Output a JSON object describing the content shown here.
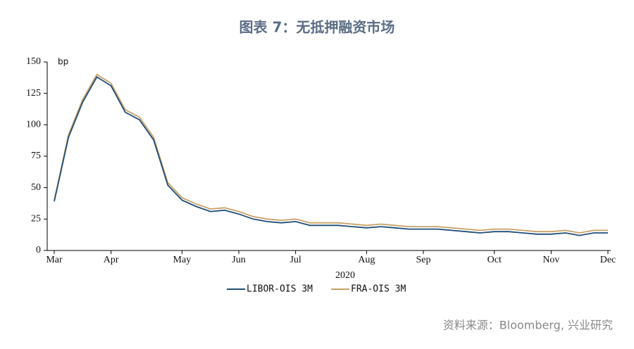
{
  "chart_data": {
    "type": "line",
    "title": "图表 7：无抵押融资市场",
    "y_unit": "bp",
    "x_label": "2020",
    "source": "资料来源：Bloomberg, 兴业研究",
    "categories": [
      "Mar",
      null,
      null,
      null,
      "Apr",
      null,
      null,
      null,
      null,
      "May",
      null,
      null,
      null,
      "Jun",
      null,
      null,
      null,
      "Jul",
      null,
      null,
      null,
      null,
      "Aug",
      null,
      null,
      null,
      "Sep",
      null,
      null,
      null,
      null,
      "Oct",
      null,
      null,
      null,
      "Nov",
      null,
      null,
      null,
      "Dec"
    ],
    "series": [
      {
        "name": "LIBOR-OIS 3M",
        "color": "#1f4e79",
        "values": [
          39,
          90,
          118,
          138,
          131,
          110,
          104,
          88,
          52,
          40,
          35,
          31,
          32,
          29,
          25,
          23,
          22,
          23,
          20,
          20,
          20,
          19,
          18,
          19,
          18,
          17,
          17,
          17,
          16,
          15,
          14,
          15,
          15,
          14,
          13,
          13,
          14,
          12,
          14,
          14
        ]
      },
      {
        "name": "FRA-OIS 3M",
        "color": "#c8a165",
        "values": [
          40,
          92,
          120,
          140,
          133,
          112,
          106,
          90,
          54,
          42,
          37,
          33,
          34,
          31,
          27,
          25,
          24,
          25,
          22,
          22,
          22,
          21,
          20,
          21,
          20,
          19,
          19,
          19,
          18,
          17,
          16,
          17,
          17,
          16,
          15,
          15,
          16,
          14,
          16,
          16
        ]
      }
    ],
    "ylim": [
      0,
      150
    ],
    "yticks": [
      0,
      25,
      50,
      75,
      100,
      125,
      150
    ]
  }
}
